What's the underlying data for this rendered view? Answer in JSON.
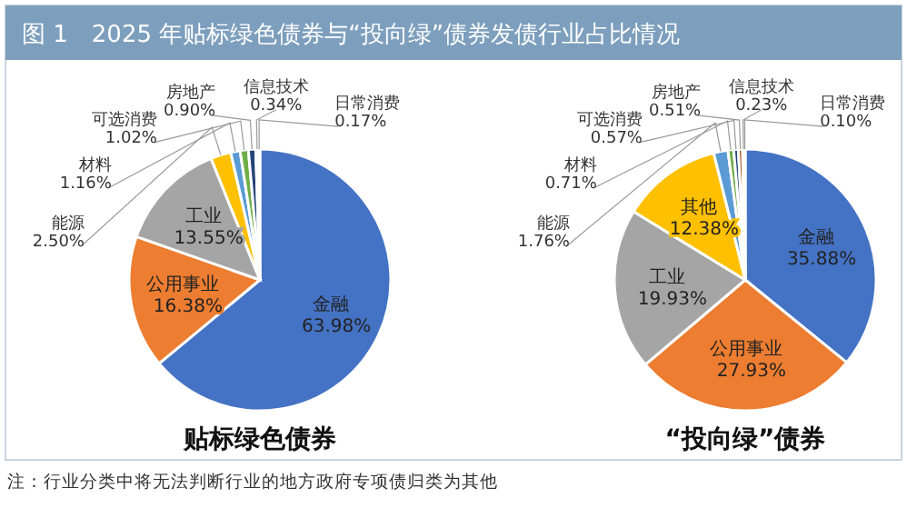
{
  "chart_data": [
    {
      "type": "pie",
      "title": "图 1　2025 年贴标绿色债券与“投向绿”债券发债行业占比情况",
      "xlabel": "贴标绿色债券",
      "annotations": [
        "注：行业分类中将无法判断行业的地方政府专项债归类为其他"
      ],
      "categories": [
        "金融",
        "公用事业",
        "工业",
        "能源",
        "材料",
        "可选消费",
        "房地产",
        "信息技术",
        "日常消费"
      ],
      "values": [
        63.98,
        16.38,
        13.55,
        2.5,
        1.16,
        1.02,
        0.9,
        0.34,
        0.17
      ],
      "value_labels": [
        "63.98%",
        "16.38%",
        "13.55%",
        "2.50%",
        "1.16%",
        "1.02%",
        "0.90%",
        "0.34%",
        "0.17%"
      ],
      "colors": [
        "#4472c4",
        "#ed7d31",
        "#a5a5a5",
        "#ffc000",
        "#5b9bd5",
        "#70ad47",
        "#264478",
        "#9e480e",
        "#636363"
      ]
    },
    {
      "type": "pie",
      "xlabel": "“投向绿”债券",
      "categories": [
        "金融",
        "公用事业",
        "工业",
        "其他",
        "能源",
        "材料",
        "可选消费",
        "房地产",
        "信息技术",
        "日常消费"
      ],
      "values": [
        35.88,
        27.93,
        19.93,
        12.38,
        1.76,
        0.71,
        0.57,
        0.51,
        0.23,
        0.1
      ],
      "value_labels": [
        "35.88%",
        "27.93%",
        "19.93%",
        "12.38%",
        "1.76%",
        "0.71%",
        "0.57%",
        "0.51%",
        "0.23%",
        "0.10%"
      ],
      "colors": [
        "#4472c4",
        "#ed7d31",
        "#a5a5a5",
        "#ffc000",
        "#5b9bd5",
        "#70ad47",
        "#264478",
        "#9e480e",
        "#636363",
        "#997300"
      ]
    }
  ]
}
